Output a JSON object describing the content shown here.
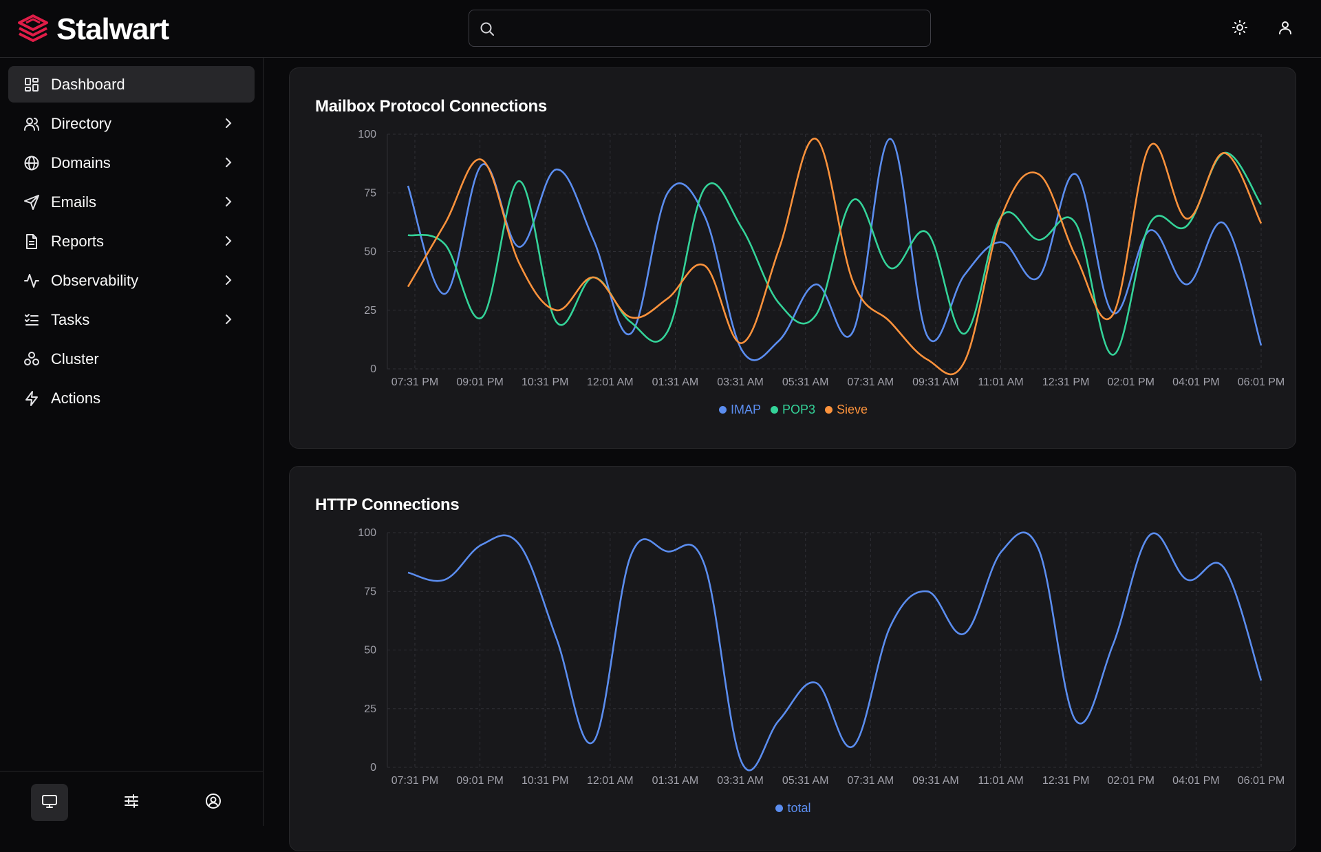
{
  "brand": {
    "name": "Stalwart",
    "accent": "#e11d48"
  },
  "search": {
    "placeholder": "",
    "value": ""
  },
  "topbar": {
    "icons": [
      "sun-icon",
      "user-icon"
    ]
  },
  "sidebar": {
    "items": [
      {
        "label": "Dashboard",
        "icon": "dashboard-icon",
        "active": true,
        "has_chevron": false
      },
      {
        "label": "Directory",
        "icon": "users-icon",
        "active": false,
        "has_chevron": true
      },
      {
        "label": "Domains",
        "icon": "globe-icon",
        "active": false,
        "has_chevron": true
      },
      {
        "label": "Emails",
        "icon": "send-icon",
        "active": false,
        "has_chevron": true
      },
      {
        "label": "Reports",
        "icon": "document-icon",
        "active": false,
        "has_chevron": true
      },
      {
        "label": "Observability",
        "icon": "activity-icon",
        "active": false,
        "has_chevron": true
      },
      {
        "label": "Tasks",
        "icon": "checklist-icon",
        "active": false,
        "has_chevron": true
      },
      {
        "label": "Cluster",
        "icon": "cluster-icon",
        "active": false,
        "has_chevron": false
      },
      {
        "label": "Actions",
        "icon": "lightning-icon",
        "active": false,
        "has_chevron": false
      }
    ],
    "footer_icons": [
      "monitor-icon",
      "sliders-icon",
      "account-icon"
    ]
  },
  "charts": {
    "mailbox": {
      "title": "Mailbox Protocol Connections",
      "chart_data": {
        "type": "line",
        "title": "Mailbox Protocol Connections",
        "xlabel": "",
        "ylabel": "",
        "ylim": [
          0,
          100
        ],
        "yticks": [
          0,
          25,
          50,
          75,
          100
        ],
        "xticks": [
          "07:31 PM",
          "09:01 PM",
          "10:31 PM",
          "12:01 AM",
          "01:31 AM",
          "03:31 AM",
          "05:31 AM",
          "07:31 AM",
          "09:31 AM",
          "11:01 AM",
          "12:31 PM",
          "02:01 PM",
          "04:01 PM",
          "06:01 PM"
        ],
        "grid": true,
        "legend": "bottom",
        "series": [
          {
            "name": "IMAP",
            "color": "#5b8def",
            "values": [
              78,
              32,
              87,
              52,
              85,
              55,
              15,
              75,
              65,
              8,
              12,
              36,
              16,
              98,
              14,
              40,
              54,
              39,
              83,
              24,
              59,
              36,
              62,
              10
            ]
          },
          {
            "name": "POP3",
            "color": "#34d399",
            "values": [
              57,
              53,
              22,
              80,
              20,
              39,
              20,
              16,
              77,
              60,
              28,
              23,
              72,
              43,
              58,
              15,
              65,
              55,
              62,
              6,
              62,
              61,
              92,
              70
            ]
          },
          {
            "name": "Sieve",
            "color": "#fb923c",
            "values": [
              35,
              62,
              89,
              45,
              25,
              39,
              22,
              30,
              44,
              11,
              51,
              98,
              37,
              20,
              4,
              3,
              65,
              83,
              48,
              23,
              95,
              64,
              92,
              62
            ]
          }
        ]
      }
    },
    "http": {
      "title": "HTTP Connections",
      "chart_data": {
        "type": "line",
        "title": "HTTP Connections",
        "xlabel": "",
        "ylabel": "",
        "ylim": [
          0,
          100
        ],
        "yticks": [
          0,
          25,
          50,
          75,
          100
        ],
        "xticks": [
          "07:31 PM",
          "09:01 PM",
          "10:31 PM",
          "12:01 AM",
          "01:31 AM",
          "03:31 AM",
          "05:31 AM",
          "07:31 AM",
          "09:31 AM",
          "11:01 AM",
          "12:31 PM",
          "02:01 PM",
          "04:01 PM",
          "06:01 PM"
        ],
        "grid": true,
        "legend": "bottom",
        "series": [
          {
            "name": "total",
            "color": "#5b8def",
            "values": [
              83,
              80,
              95,
              95,
              55,
              11,
              90,
              92,
              86,
              2,
              20,
              36,
              9,
              60,
              75,
              57,
              92,
              93,
              20,
              52,
              99,
              80,
              85,
              37
            ]
          }
        ]
      }
    }
  }
}
